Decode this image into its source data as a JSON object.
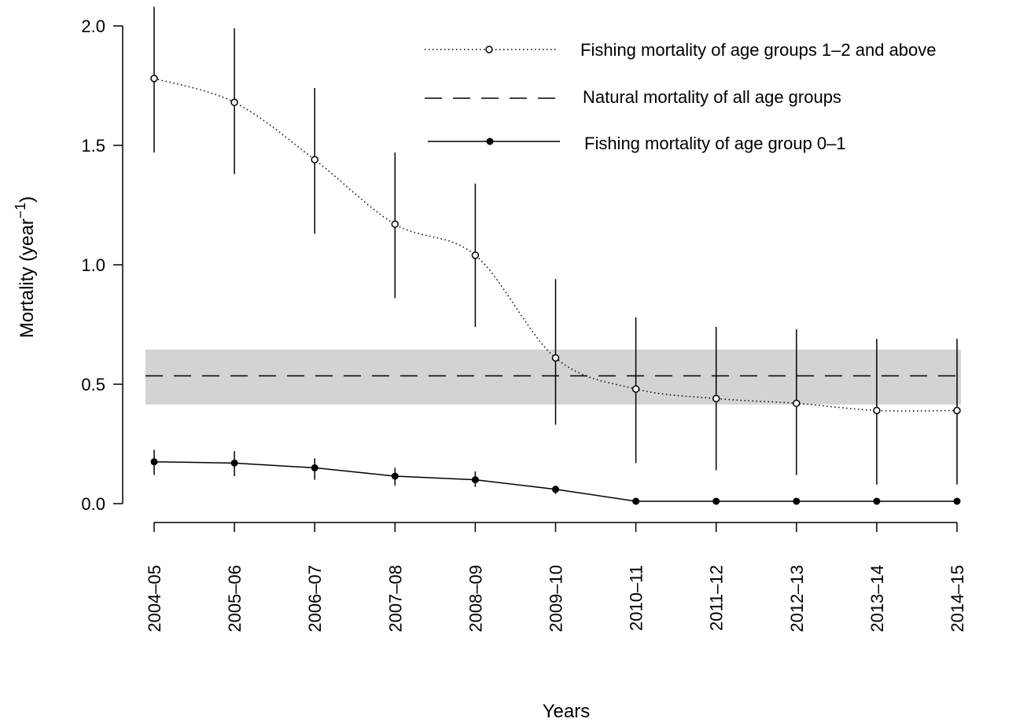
{
  "chart_data": {
    "type": "line",
    "xlabel": "Years",
    "ylabel_main": "Mortality (year",
    "ylabel_sup": "−1",
    "ylabel_close": ")",
    "ylim": [
      0,
      2.0
    ],
    "y_ticks": [
      "0.0",
      "0.5",
      "1.0",
      "1.5",
      "2.0"
    ],
    "y_tick_values": [
      0,
      0.5,
      1.0,
      1.5,
      2.0
    ],
    "categories": [
      "2004–05",
      "2005–06",
      "2006–07",
      "2007–08",
      "2008–09",
      "2009–10",
      "2010–11",
      "2011–12",
      "2012–13",
      "2013–14",
      "2014–15"
    ],
    "grid": false,
    "legend_position": "top-right",
    "series": [
      {
        "name": "Fishing mortality of age groups 1–2 and above",
        "style": "dotted line, open circles",
        "values": [
          1.78,
          1.68,
          1.44,
          1.17,
          1.04,
          0.61,
          0.48,
          0.44,
          0.42,
          0.39,
          0.39
        ],
        "error_lower": [
          1.47,
          1.38,
          1.13,
          0.86,
          0.74,
          0.33,
          0.17,
          0.14,
          0.12,
          0.08,
          0.08
        ],
        "error_upper": [
          2.08,
          1.99,
          1.74,
          1.47,
          1.34,
          0.94,
          0.78,
          0.74,
          0.73,
          0.69,
          0.69
        ]
      },
      {
        "name": "Natural mortality of all age groups",
        "style": "dashed line with grey confidence band",
        "value": 0.535,
        "band": [
          0.415,
          0.645
        ]
      },
      {
        "name": "Fishing mortality of age group 0–1",
        "style": "solid line, filled circles",
        "values": [
          0.175,
          0.17,
          0.15,
          0.115,
          0.1,
          0.06,
          0.01,
          0.01,
          0.01,
          0.01,
          0.01
        ],
        "error_lower": [
          0.12,
          0.115,
          0.1,
          0.075,
          0.07,
          0.04,
          0.005,
          0.005,
          0.005,
          0.005,
          0.005
        ],
        "error_upper": [
          0.225,
          0.22,
          0.19,
          0.15,
          0.135,
          0.075,
          0.015,
          0.015,
          0.015,
          0.015,
          0.015
        ]
      }
    ]
  },
  "colors": {
    "band": "#d3d3d3",
    "ink": "#000000",
    "background": "#ffffff"
  }
}
